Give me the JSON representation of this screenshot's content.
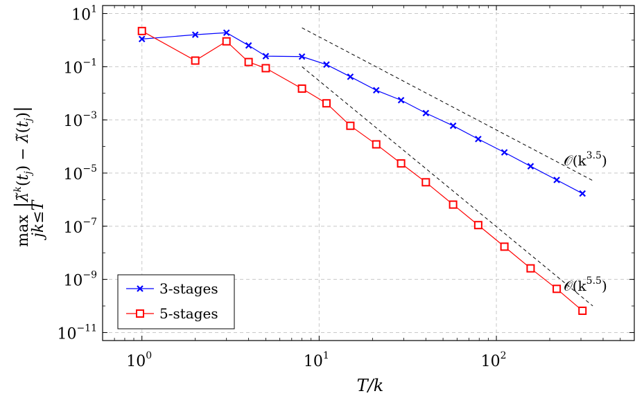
{
  "chart_data": {
    "type": "line",
    "xlabel": "T/k",
    "ylabel": "max_{jk≤T} |λ̃^k(t_j) − λ̃(t_j)|",
    "xscale": "log",
    "yscale": "log",
    "xlim": [
      0.6,
      600
    ],
    "ylim": [
      5e-12,
      20.0
    ],
    "x_ticks": [
      {
        "base": "10",
        "exp": "0"
      },
      {
        "base": "10",
        "exp": "1"
      },
      {
        "base": "10",
        "exp": "2"
      }
    ],
    "y_ticks": [
      {
        "base": "10",
        "exp": "1"
      },
      {
        "base": "10",
        "exp": "−1"
      },
      {
        "base": "10",
        "exp": "−3"
      },
      {
        "base": "10",
        "exp": "−5"
      },
      {
        "base": "10",
        "exp": "−7"
      },
      {
        "base": "10",
        "exp": "−9"
      },
      {
        "base": "10",
        "exp": "−11"
      }
    ],
    "grid": true,
    "legend_position": "bottom-left",
    "series": [
      {
        "name": "3-stages",
        "color": "#0000ff",
        "marker": "x",
        "x": [
          1,
          2,
          3,
          4,
          5,
          8,
          11,
          15,
          21,
          29,
          40,
          57,
          79,
          111,
          156,
          219,
          306
        ],
        "y": [
          1.1,
          1.6,
          1.9,
          0.63,
          0.25,
          0.24,
          0.12,
          0.042,
          0.013,
          0.0055,
          0.0018,
          0.0006,
          0.00019,
          6e-05,
          1.8e-05,
          5.5e-06,
          1.7e-06
        ]
      },
      {
        "name": "5-stages",
        "color": "#ff0000",
        "marker": "square",
        "x": [
          1,
          2,
          3,
          4,
          5,
          8,
          11,
          15,
          21,
          29,
          40,
          57,
          79,
          111,
          156,
          219,
          306
        ],
        "y": [
          2.2,
          0.17,
          0.9,
          0.15,
          0.088,
          0.015,
          0.0042,
          0.0006,
          0.00012,
          2.3e-05,
          4.5e-06,
          6.5e-07,
          1.1e-07,
          1.7e-08,
          2.6e-09,
          4.4e-10,
          6.6e-11
        ]
      }
    ],
    "reference_lines": [
      {
        "label_base": "𝒪(k",
        "label_exp": "3.5",
        "label_end": ")",
        "x": [
          8,
          350
        ],
        "y": [
          2.9,
          5.2e-06
        ]
      },
      {
        "label_base": "𝒪(k",
        "label_exp": "5.5",
        "label_end": ")",
        "x": [
          8,
          350
        ],
        "y": [
          0.1,
          1e-10
        ]
      }
    ]
  }
}
